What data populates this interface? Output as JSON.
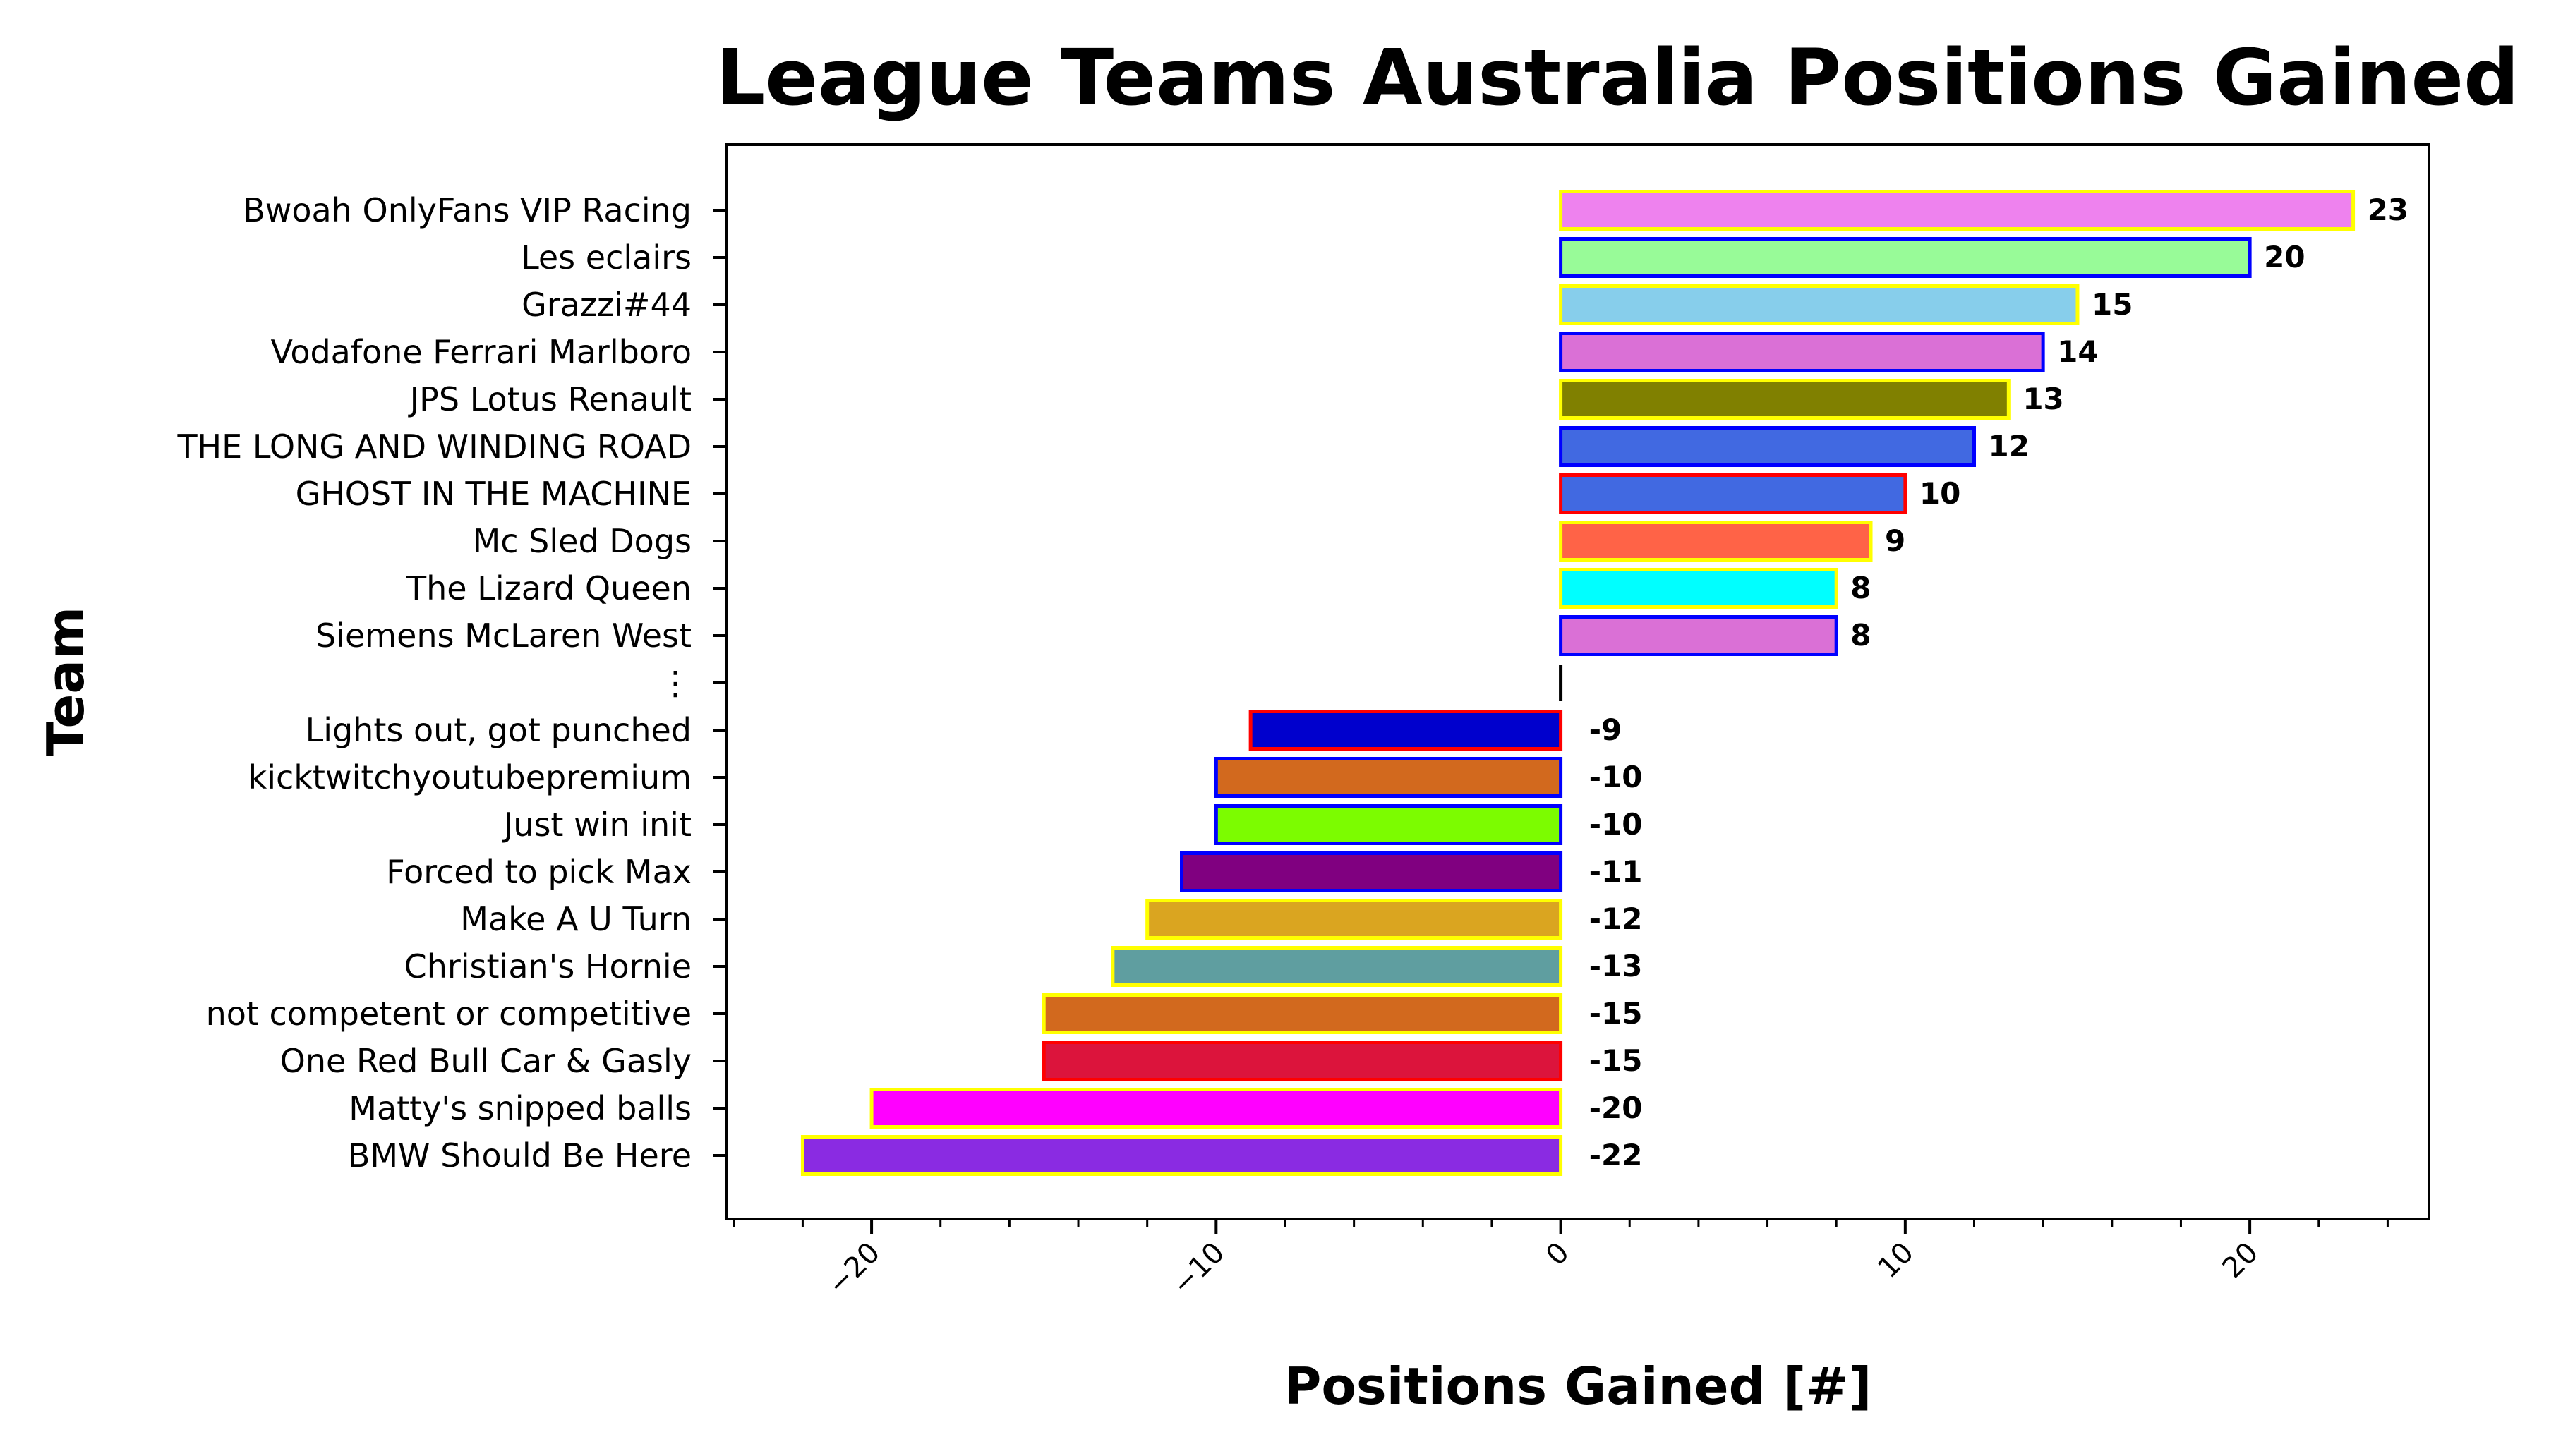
{
  "chart_data": {
    "type": "bar",
    "orientation": "horizontal",
    "title": "League Teams Australia Positions Gained",
    "xlabel": "Positions Gained [#]",
    "ylabel": "Team",
    "xlim": [
      -24.2,
      25.2
    ],
    "xticks": [
      -20,
      -10,
      0,
      10,
      20
    ],
    "xtick_labels": [
      "−20",
      "−10",
      "0",
      "10",
      "20"
    ],
    "grid": false,
    "categories": [
      "Bwoah OnlyFans VIP Racing",
      "Les eclairs",
      "Grazzi#44",
      "Vodafone Ferrari Marlboro",
      "JPS Lotus Renault",
      "THE LONG AND WINDING ROAD",
      "GHOST IN THE MACHINE",
      "Mc Sled Dogs",
      "The Lizard Queen",
      "Siemens McLaren West",
      "⋮",
      "Lights out, got punched",
      "kicktwitchyoutubepremium",
      "Just win init",
      "Forced to pick Max",
      "Make A U Turn",
      "Christian's Hornie",
      "not competent or competitive",
      "One Red Bull Car & Gasly",
      "Matty's snipped balls",
      "BMW Should Be Here"
    ],
    "values": [
      23,
      20,
      15,
      14,
      13,
      12,
      10,
      9,
      8,
      8,
      0,
      -9,
      -10,
      -10,
      -11,
      -12,
      -13,
      -15,
      -15,
      -20,
      -22
    ],
    "data_labels": [
      "23",
      "20",
      "15",
      "14",
      "13",
      "12",
      "10",
      "9",
      "8",
      "8",
      "",
      "-9",
      "-10",
      "-10",
      "-11",
      "-12",
      "-13",
      "-15",
      "-15",
      "-20",
      "-22"
    ],
    "fill_colors": [
      "#ee82ee",
      "#98fb98",
      "#87ceeb",
      "#da70d6",
      "#808000",
      "#4169e1",
      "#4169e1",
      "#ff6347",
      "#00ffff",
      "#da70d6",
      "#000000",
      "#0000cd",
      "#d2691e",
      "#7cfc00",
      "#800080",
      "#daa520",
      "#5f9ea0",
      "#d2691e",
      "#dc143c",
      "#ff00ff",
      "#8a2be2"
    ],
    "edge_colors": [
      "#ffff00",
      "#0000ff",
      "#ffff00",
      "#0000ff",
      "#ffff00",
      "#0000ff",
      "#ff0000",
      "#ffff00",
      "#ffff00",
      "#0000ff",
      "#000000",
      "#ff0000",
      "#0000ff",
      "#0000ff",
      "#0000ff",
      "#ffff00",
      "#ffff00",
      "#ffff00",
      "#ff0000",
      "#ffff00",
      "#ffff00"
    ]
  }
}
